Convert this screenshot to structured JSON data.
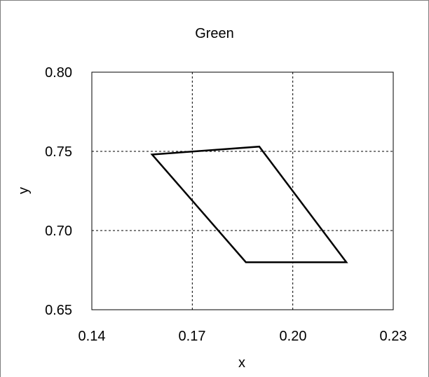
{
  "chart_data": {
    "type": "line",
    "title": "Green",
    "xlabel": "x",
    "ylabel": "y",
    "xlim": [
      0.14,
      0.23
    ],
    "ylim": [
      0.65,
      0.8
    ],
    "xticks": [
      "0.14",
      "0.17",
      "0.20",
      "0.23"
    ],
    "yticks": [
      "0.80",
      "0.75",
      "0.70",
      "0.65"
    ],
    "grid": true,
    "series": [
      {
        "closed": true,
        "color": "#000000",
        "points": [
          {
            "x": 0.158,
            "y": 0.748
          },
          {
            "x": 0.19,
            "y": 0.753
          },
          {
            "x": 0.216,
            "y": 0.68
          },
          {
            "x": 0.186,
            "y": 0.68
          }
        ]
      }
    ]
  }
}
